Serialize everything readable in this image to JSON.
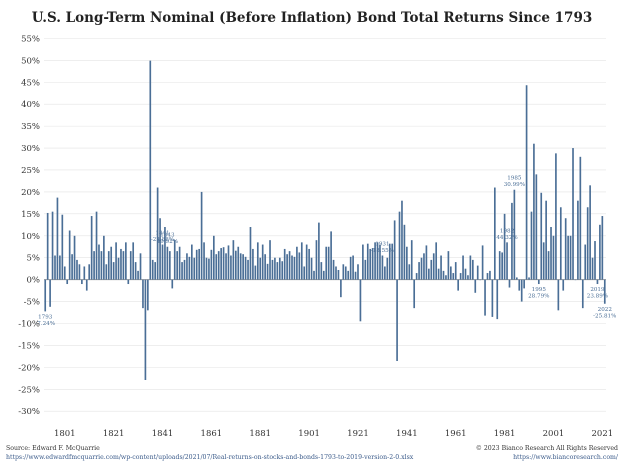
{
  "chart_data": {
    "type": "bar",
    "title": "U.S. Long-Term Nominal (Before Inflation) Bond Total Returns Since 1793",
    "xlabel": "",
    "ylabel": "",
    "ylim": [
      -0.32,
      0.56
    ],
    "y_ticks": [
      "55%",
      "50%",
      "45%",
      "40%",
      "35%",
      "30%",
      "25%",
      "20%",
      "15%",
      "10%",
      "5%",
      "0%",
      "-5%",
      "-10%",
      "-15%",
      "-20%",
      "-25%",
      "-30%"
    ],
    "y_tick_values": [
      0.55,
      0.5,
      0.45,
      0.4,
      0.35,
      0.3,
      0.25,
      0.2,
      0.15,
      0.1,
      0.05,
      0.0,
      -0.05,
      -0.1,
      -0.15,
      -0.2,
      -0.25,
      -0.3
    ],
    "x_ticks": [
      "1801",
      "1821",
      "1841",
      "1861",
      "1881",
      "1901",
      "1921",
      "1941",
      "1961",
      "1981",
      "2001",
      "2021"
    ],
    "x_tick_values": [
      1801,
      1821,
      1841,
      1861,
      1881,
      1901,
      1921,
      1941,
      1961,
      1981,
      2001,
      2021
    ],
    "x_range": [
      1793,
      2022
    ],
    "grid": true,
    "legend": "none",
    "bar_color": "#4a6e96",
    "series": [
      {
        "start_year": 1793,
        "values": [
          -0.0724,
          0.152,
          -0.062,
          0.155,
          0.055,
          0.187,
          0.055,
          0.148,
          0.03,
          -0.01,
          0.112,
          0.058,
          0.1,
          0.045,
          0.035,
          -0.01,
          0.03,
          -0.025,
          0.035,
          0.145,
          0.065,
          0.155,
          0.08,
          0.065,
          0.1,
          0.035,
          0.065,
          0.075,
          0.04,
          0.085,
          0.05,
          0.07,
          0.065,
          0.085,
          -0.01,
          0.065,
          0.085,
          0.04,
          0.02,
          0.06,
          -0.065,
          -0.2288,
          -0.07,
          0.4992,
          0.045,
          0.04,
          0.21,
          0.14,
          0.08,
          0.12,
          0.075,
          0.065,
          -0.02,
          0.09,
          0.065,
          0.075,
          0.04,
          0.045,
          0.06,
          0.052,
          0.08,
          0.05,
          0.068,
          0.07,
          0.2,
          0.085,
          0.05,
          0.048,
          0.068,
          0.1,
          0.058,
          0.065,
          0.072,
          0.074,
          0.06,
          0.078,
          0.055,
          0.09,
          0.066,
          0.075,
          0.06,
          0.058,
          0.052,
          0.045,
          0.12,
          0.07,
          0.032,
          0.085,
          0.05,
          0.08,
          0.058,
          0.036,
          0.09,
          0.045,
          0.05,
          0.04,
          0.05,
          0.042,
          0.07,
          0.058,
          0.065,
          0.055,
          0.052,
          0.075,
          0.062,
          0.085,
          0.03,
          0.08,
          0.07,
          0.05,
          0.02,
          0.09,
          0.13,
          0.04,
          0.02,
          0.075,
          0.075,
          0.11,
          0.045,
          0.03,
          0.022,
          -0.04,
          0.035,
          0.03,
          0.02,
          0.052,
          0.055,
          0.018,
          0.035,
          -0.095,
          0.08,
          0.045,
          0.082,
          0.07,
          0.072,
          0.085,
          0.085,
          0.08,
          0.055,
          0.03,
          0.05,
          0.082,
          0.082,
          0.135,
          -0.1855,
          0.155,
          0.18,
          0.125,
          0.075,
          0.035,
          0.09,
          -0.065,
          0.015,
          0.04,
          0.05,
          0.06,
          0.078,
          0.025,
          0.045,
          0.06,
          0.085,
          0.025,
          0.055,
          0.02,
          0.01,
          0.065,
          0.03,
          0.015,
          0.04,
          -0.025,
          0.015,
          0.055,
          0.025,
          0.01,
          0.055,
          0.045,
          -0.03,
          0.032,
          0.0,
          0.078,
          -0.082,
          0.015,
          0.02,
          -0.085,
          0.21,
          -0.09,
          0.065,
          0.062,
          0.15,
          0.085,
          -0.018,
          0.175,
          0.205,
          0.005,
          -0.025,
          -0.05,
          -0.02,
          0.4432,
          0.005,
          0.155,
          0.3099,
          0.24,
          -0.01,
          0.198,
          0.085,
          0.18,
          0.065,
          0.12,
          0.1,
          0.2879,
          -0.07,
          0.165,
          -0.025,
          0.14,
          0.1,
          0.1,
          0.3,
          0.0,
          0.18,
          0.28,
          -0.065,
          0.08,
          0.165,
          0.215,
          0.05,
          0.088,
          -0.01,
          0.125,
          0.145,
          -0.055
        ]
      },
      {
        "note_hidden": null
      }
    ],
    "tail_values": [
      -0.059,
      0.155,
      0.125,
      0.102,
      0.018,
      0.062,
      0.085,
      0.032,
      0.11,
      0.05,
      0.09,
      -0.08,
      0.115,
      0.2389,
      0.138,
      -0.045,
      -0.2581
    ],
    "annotations": [
      {
        "year": 1793,
        "label": "1793",
        "value_label": "-7.24%"
      },
      {
        "year": 1843,
        "label": "1843",
        "value_label": "49.92%"
      },
      {
        "year": 1841,
        "label": "1841",
        "value_label": "-22.88%"
      },
      {
        "year": 1931,
        "label": "1931",
        "value_label": "-18.55%"
      },
      {
        "year": 1982,
        "label": "1982",
        "value_label": "44.32%"
      },
      {
        "year": 1985,
        "label": "1985",
        "value_label": "30.99%"
      },
      {
        "year": 1995,
        "label": "1995",
        "value_label": "28.79%"
      },
      {
        "year": 2019,
        "label": "2019",
        "value_label": "23.89%"
      },
      {
        "year": 2022,
        "label": "2022",
        "value_label": "-25.81%"
      }
    ]
  },
  "source": {
    "line1": "Source: Edward F. McQuarrie",
    "line2": "https://www.edwardfmcquarrie.com/wp-content/uploads/2021/07/Real-returns-on-stocks-and-bonds-1793-to-2019-version-2-0.xlsx"
  },
  "copyright": {
    "line1": "© 2023 Bianco Research All Rights Reserved",
    "line2": "https://www.biancoresearch.com/"
  }
}
